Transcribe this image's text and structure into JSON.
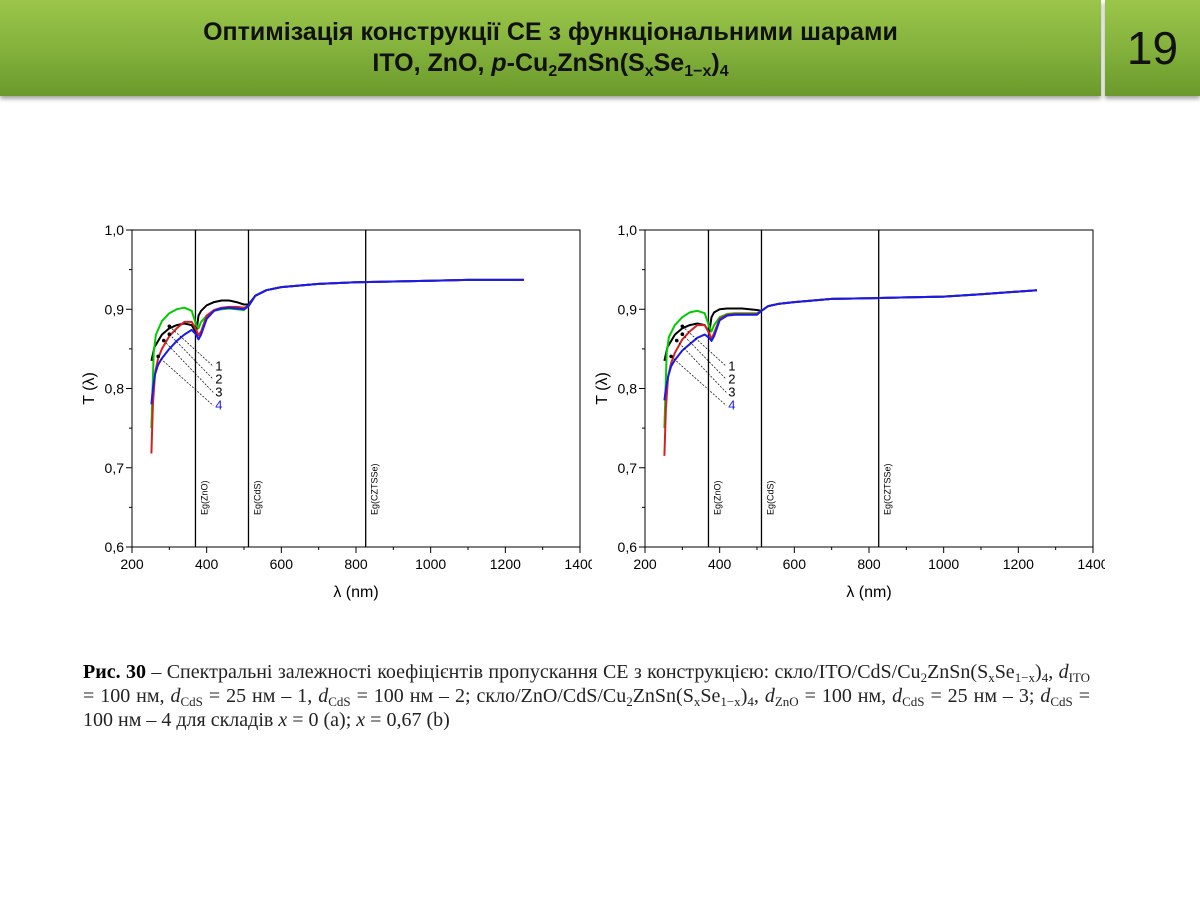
{
  "slide": {
    "title_line1": "Оптимізація конструкції СЕ з функціональними шарами",
    "title_line2_prefix": "ITO, ZnO, ",
    "title_line2_p": "p",
    "title_line2_formula": "-Cu2ZnSn(SxSe1−x)4",
    "page_number": "19"
  },
  "chart_data": [
    {
      "type": "line",
      "title": "",
      "xlabel": "λ (nm)",
      "ylabel": "T (λ)",
      "xlim": [
        200,
        1400
      ],
      "ylim": [
        0.6,
        1.0
      ],
      "xticks": [
        "200",
        "400",
        "600",
        "800",
        "1000",
        "1200",
        "1400"
      ],
      "yticks": [
        "0,6",
        "0,7",
        "0,8",
        "0,9",
        "1,0"
      ],
      "vlines": [
        {
          "x": 370,
          "label": "Eg(ZnO)"
        },
        {
          "x": 512,
          "label": "Eg(CdS)"
        },
        {
          "x": 826,
          "label": "Eg(CZTSSe)"
        }
      ],
      "curve_labels": [
        "1",
        "2",
        "3",
        "4"
      ],
      "series": [
        {
          "name": "1",
          "color": "#000000",
          "x": [
            252,
            260,
            280,
            300,
            320,
            340,
            360,
            372,
            378,
            385,
            400,
            420,
            440,
            460,
            480,
            500,
            512,
            530,
            560,
            600,
            700,
            800,
            900,
            1000,
            1100,
            1250
          ],
          "y": [
            0.835,
            0.852,
            0.868,
            0.876,
            0.88,
            0.882,
            0.88,
            0.87,
            0.892,
            0.898,
            0.905,
            0.909,
            0.911,
            0.911,
            0.909,
            0.906,
            0.906,
            0.917,
            0.924,
            0.928,
            0.932,
            0.934,
            0.935,
            0.936,
            0.937,
            0.937
          ]
        },
        {
          "name": "2",
          "color": "#00cc00",
          "x": [
            252,
            258,
            264,
            280,
            300,
            320,
            340,
            360,
            372,
            378,
            385,
            400,
            420,
            440,
            460,
            480,
            500,
            512,
            530,
            560,
            600,
            700,
            800,
            900,
            1000,
            1100,
            1250
          ],
          "y": [
            0.75,
            0.845,
            0.868,
            0.885,
            0.895,
            0.9,
            0.902,
            0.898,
            0.88,
            0.876,
            0.884,
            0.892,
            0.898,
            0.9,
            0.901,
            0.9,
            0.899,
            0.904,
            0.917,
            0.924,
            0.928,
            0.932,
            0.934,
            0.935,
            0.936,
            0.937,
            0.937
          ]
        },
        {
          "name": "3",
          "color": "#d42020",
          "x": [
            252,
            256,
            262,
            270,
            280,
            300,
            320,
            340,
            360,
            372,
            378,
            385,
            400,
            420,
            440,
            460,
            480,
            500,
            512,
            530,
            560,
            600,
            700,
            800,
            900,
            1000,
            1100,
            1250
          ],
          "y": [
            0.718,
            0.78,
            0.82,
            0.838,
            0.85,
            0.866,
            0.876,
            0.884,
            0.884,
            0.874,
            0.867,
            0.872,
            0.892,
            0.899,
            0.902,
            0.903,
            0.903,
            0.902,
            0.904,
            0.917,
            0.924,
            0.928,
            0.932,
            0.934,
            0.935,
            0.936,
            0.937,
            0.937
          ]
        },
        {
          "name": "4",
          "color": "#1a1aee",
          "x": [
            252,
            256,
            262,
            270,
            280,
            300,
            320,
            340,
            360,
            372,
            378,
            385,
            400,
            420,
            440,
            460,
            480,
            500,
            512,
            530,
            560,
            600,
            700,
            800,
            900,
            1000,
            1100,
            1250
          ],
          "y": [
            0.78,
            0.8,
            0.818,
            0.83,
            0.838,
            0.85,
            0.86,
            0.868,
            0.874,
            0.868,
            0.862,
            0.868,
            0.888,
            0.898,
            0.901,
            0.902,
            0.901,
            0.9,
            0.904,
            0.917,
            0.924,
            0.928,
            0.932,
            0.934,
            0.935,
            0.936,
            0.937,
            0.937
          ]
        }
      ]
    },
    {
      "type": "line",
      "title": "",
      "xlabel": "λ (nm)",
      "ylabel": "T (λ)",
      "xlim": [
        200,
        1400
      ],
      "ylim": [
        0.6,
        1.0
      ],
      "xticks": [
        "200",
        "400",
        "600",
        "800",
        "1000",
        "1200",
        "1400"
      ],
      "yticks": [
        "0,6",
        "0,7",
        "0,8",
        "0,9",
        "1,0"
      ],
      "vlines": [
        {
          "x": 370,
          "label": "Eg(ZnO)"
        },
        {
          "x": 512,
          "label": "Eg(CdS)"
        },
        {
          "x": 826,
          "label": "Eg(CZTSSe)"
        }
      ],
      "curve_labels": [
        "1",
        "2",
        "3",
        "4"
      ],
      "series": [
        {
          "name": "1",
          "color": "#000000",
          "x": [
            252,
            260,
            280,
            300,
            320,
            340,
            360,
            372,
            378,
            385,
            400,
            420,
            440,
            460,
            480,
            500,
            512,
            530,
            560,
            600,
            700,
            800,
            900,
            1000,
            1100,
            1250
          ],
          "y": [
            0.835,
            0.852,
            0.868,
            0.876,
            0.88,
            0.882,
            0.88,
            0.87,
            0.89,
            0.896,
            0.9,
            0.901,
            0.901,
            0.901,
            0.9,
            0.899,
            0.898,
            0.904,
            0.907,
            0.909,
            0.913,
            0.914,
            0.915,
            0.916,
            0.919,
            0.924
          ]
        },
        {
          "name": "2",
          "color": "#00cc00",
          "x": [
            252,
            258,
            264,
            280,
            300,
            320,
            340,
            360,
            372,
            378,
            385,
            400,
            420,
            440,
            460,
            480,
            500,
            512,
            530,
            560,
            600,
            700,
            800,
            900,
            1000,
            1100,
            1250
          ],
          "y": [
            0.75,
            0.845,
            0.865,
            0.88,
            0.89,
            0.896,
            0.898,
            0.895,
            0.878,
            0.872,
            0.88,
            0.89,
            0.894,
            0.895,
            0.895,
            0.895,
            0.895,
            0.898,
            0.904,
            0.907,
            0.909,
            0.913,
            0.914,
            0.915,
            0.916,
            0.919,
            0.924
          ]
        },
        {
          "name": "3",
          "color": "#d42020",
          "x": [
            252,
            256,
            262,
            270,
            280,
            300,
            320,
            340,
            360,
            372,
            378,
            385,
            400,
            420,
            440,
            460,
            480,
            500,
            512,
            530,
            560,
            600,
            700,
            800,
            900,
            1000,
            1100,
            1250
          ],
          "y": [
            0.715,
            0.775,
            0.815,
            0.832,
            0.845,
            0.862,
            0.872,
            0.88,
            0.88,
            0.87,
            0.862,
            0.87,
            0.888,
            0.893,
            0.894,
            0.894,
            0.894,
            0.894,
            0.898,
            0.904,
            0.907,
            0.909,
            0.913,
            0.914,
            0.915,
            0.916,
            0.919,
            0.924
          ]
        },
        {
          "name": "4",
          "color": "#1a1aee",
          "x": [
            252,
            256,
            262,
            270,
            280,
            300,
            320,
            340,
            360,
            372,
            378,
            385,
            400,
            420,
            440,
            460,
            480,
            500,
            512,
            530,
            560,
            600,
            700,
            800,
            900,
            1000,
            1100,
            1250
          ],
          "y": [
            0.785,
            0.8,
            0.815,
            0.828,
            0.836,
            0.848,
            0.856,
            0.864,
            0.868,
            0.864,
            0.86,
            0.866,
            0.886,
            0.892,
            0.893,
            0.893,
            0.893,
            0.893,
            0.898,
            0.904,
            0.907,
            0.909,
            0.913,
            0.914,
            0.915,
            0.916,
            0.919,
            0.924
          ]
        }
      ]
    }
  ],
  "caption": {
    "lead": "Рис.   30",
    "dash": " – ",
    "text1": "Спектральні залежності коефіцієнтів пропускання СЕ з конструкцією: скло/ITO/CdS/",
    "formula": "Cu2ZnSn(SxSe1−x)4",
    "text2": ", dITO = 100 нм, dCdS = 25 нм – 1, dCdS = 100 нм – 2; скло/ZnO/CdS/",
    "text3": ", dZnO = 100 нм, dCdS = 25 нм – 3; dCdS = 100 нм – 4 для складів x = 0 (a); x = 0,67 (b)"
  }
}
